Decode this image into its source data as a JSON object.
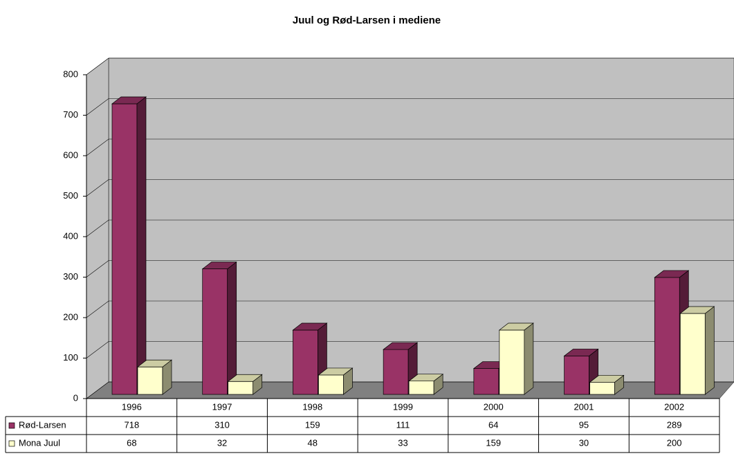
{
  "chart_data": {
    "type": "bar3d",
    "title": "Juul og Rød-Larsen i mediene",
    "categories": [
      "1996",
      "1997",
      "1998",
      "1999",
      "2000",
      "2001",
      "2002"
    ],
    "series": [
      {
        "name": "Rød-Larsen",
        "color": "#993366",
        "values": [
          718,
          310,
          159,
          111,
          64,
          95,
          289
        ]
      },
      {
        "name": "Mona Juul",
        "color": "#ffffcc",
        "values": [
          68,
          32,
          48,
          33,
          159,
          30,
          200
        ]
      }
    ],
    "ylim": [
      0,
      800
    ],
    "yticks": [
      0,
      100,
      200,
      300,
      400,
      500,
      600,
      700,
      800
    ],
    "grid": true
  }
}
